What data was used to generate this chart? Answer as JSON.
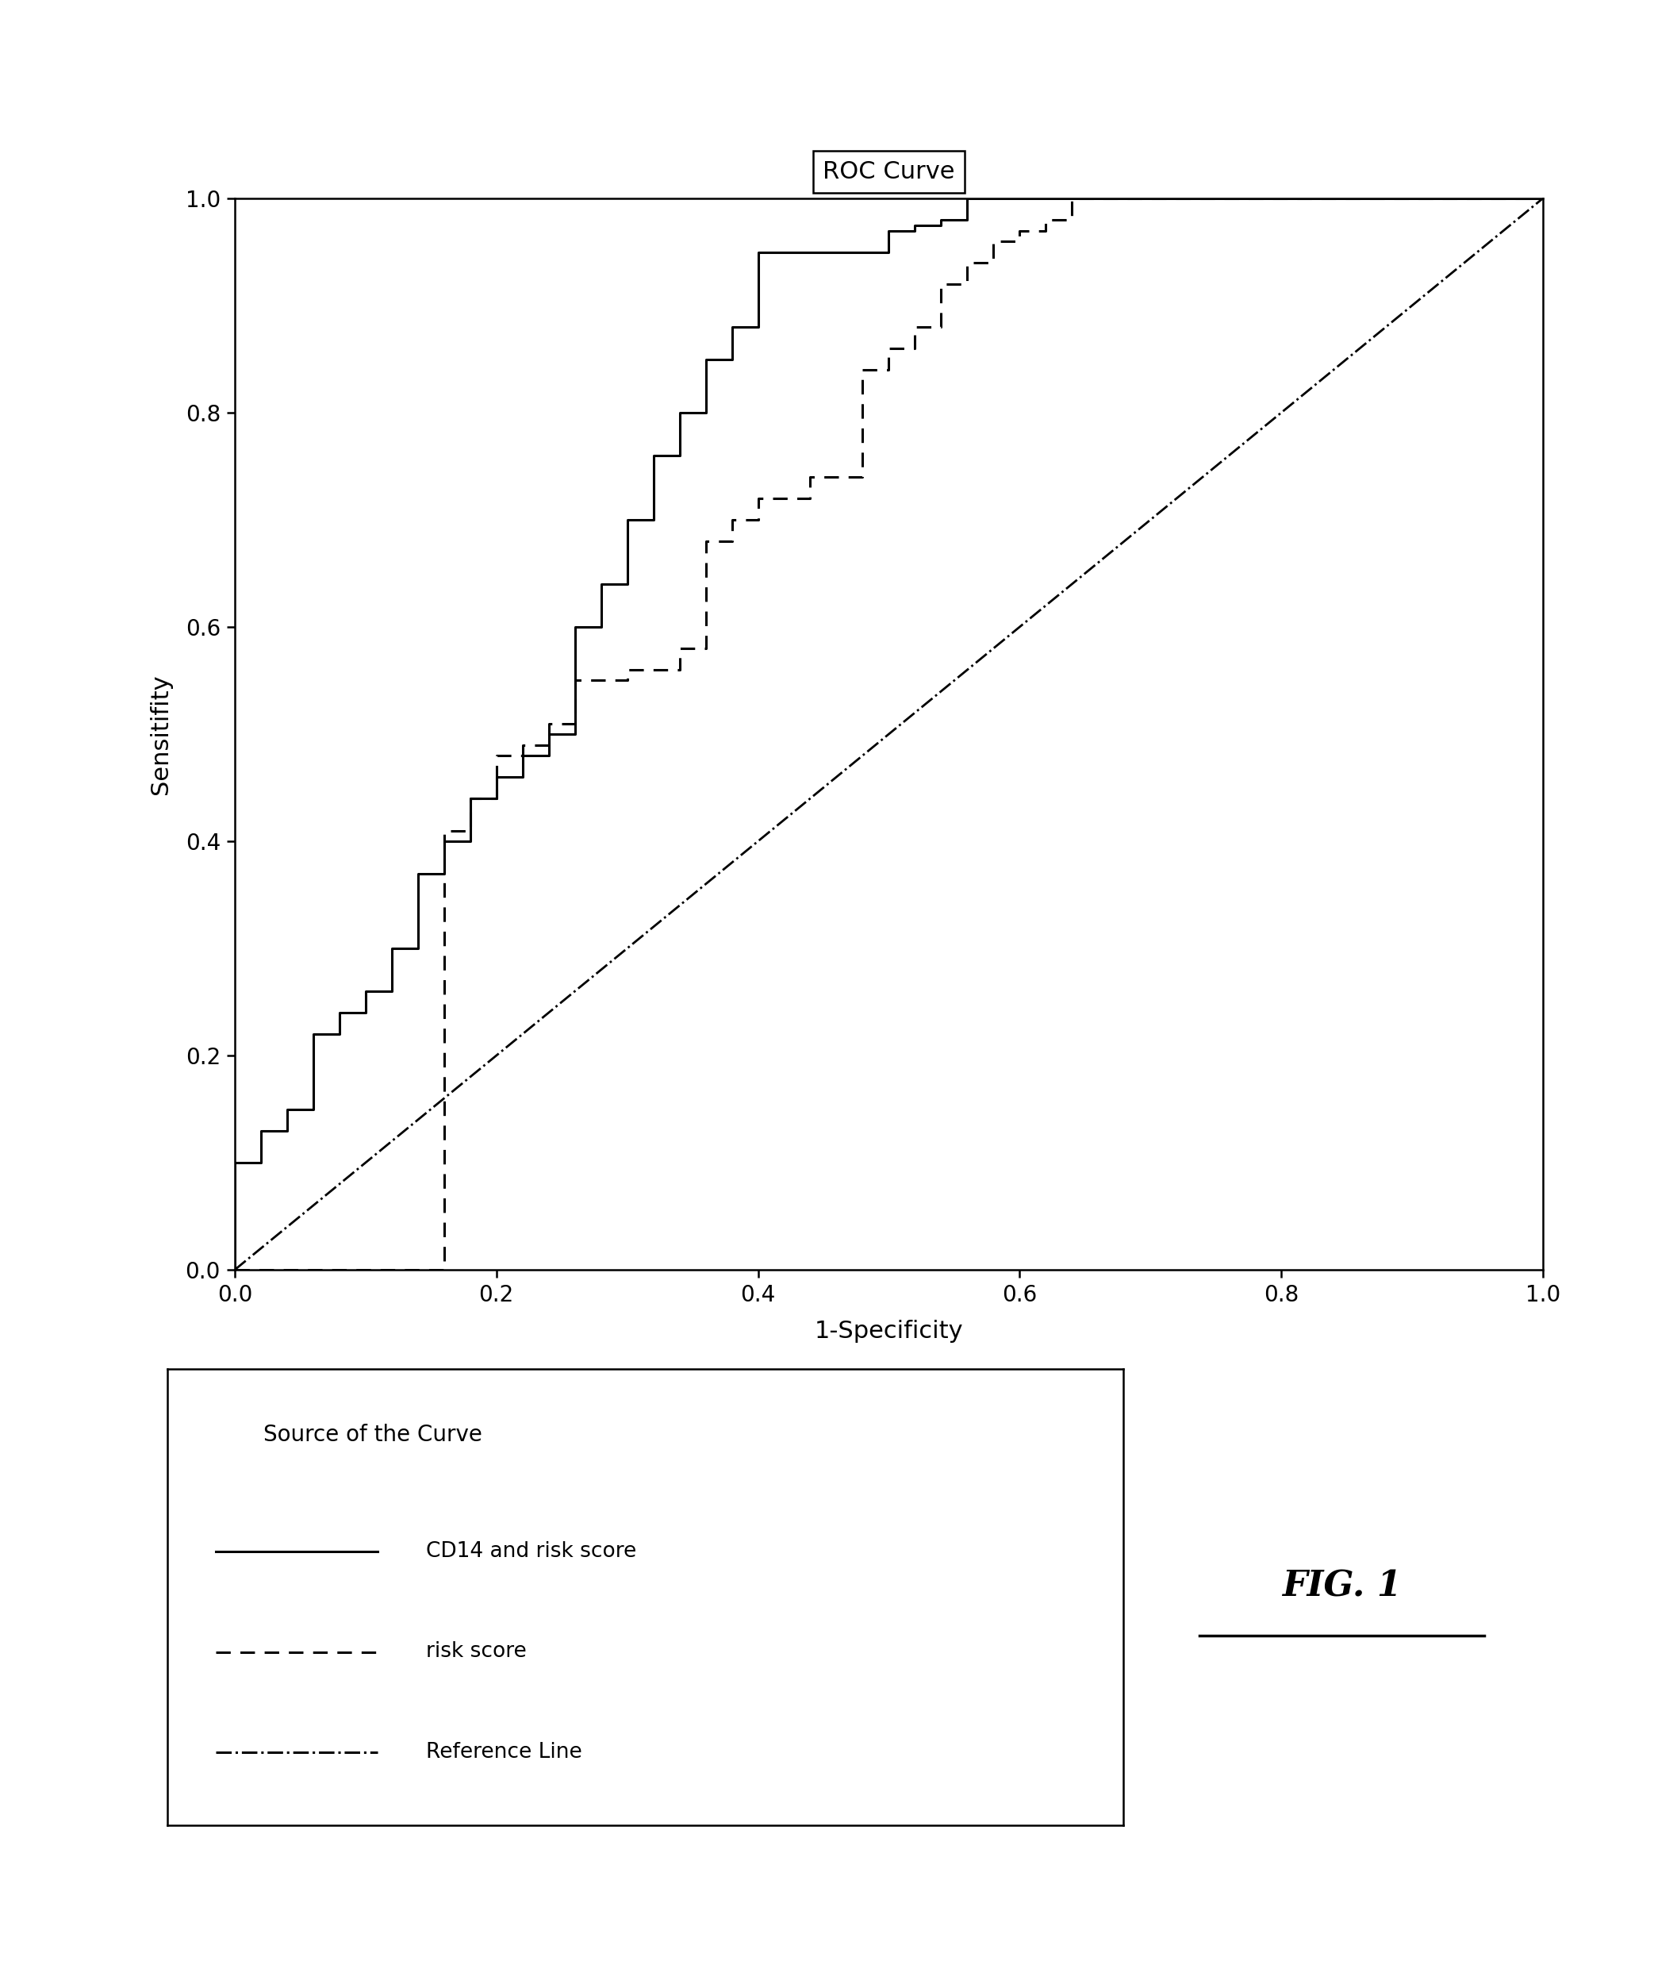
{
  "title": "ROC Curve",
  "xlabel": "1-Specificity",
  "ylabel": "Sensitifity",
  "xlim": [
    0.0,
    1.0
  ],
  "ylim": [
    0.0,
    1.0
  ],
  "xticks": [
    0.0,
    0.2,
    0.4,
    0.6,
    0.8,
    1.0
  ],
  "yticks": [
    0.0,
    0.2,
    0.4,
    0.6,
    0.8,
    1.0
  ],
  "background_color": "#ffffff",
  "line_color": "#000000",
  "title_fontsize": 22,
  "axis_label_fontsize": 22,
  "tick_fontsize": 20,
  "legend_title": "Source of the Curve",
  "legend_title_fontsize": 20,
  "legend_text_fontsize": 19,
  "legend_entries": [
    "CD14 and risk score",
    "risk score",
    "Reference Line"
  ],
  "legend_linestyles": [
    "-",
    "--",
    "-."
  ],
  "fig_label": "FIG. 1",
  "fig_label_fontsize": 32,
  "cd14_x": [
    0.0,
    0.0,
    0.02,
    0.02,
    0.04,
    0.04,
    0.06,
    0.06,
    0.08,
    0.08,
    0.1,
    0.1,
    0.12,
    0.12,
    0.14,
    0.14,
    0.16,
    0.16,
    0.18,
    0.18,
    0.2,
    0.2,
    0.22,
    0.22,
    0.24,
    0.24,
    0.26,
    0.26,
    0.28,
    0.28,
    0.3,
    0.3,
    0.32,
    0.32,
    0.34,
    0.34,
    0.36,
    0.36,
    0.38,
    0.38,
    0.4,
    0.4,
    0.5,
    0.5,
    0.52,
    0.52,
    0.54,
    0.54,
    0.56,
    0.56,
    0.58,
    0.58,
    0.6,
    0.6,
    0.8,
    0.8,
    0.82,
    0.82,
    1.0
  ],
  "cd14_y": [
    0.0,
    0.1,
    0.1,
    0.13,
    0.13,
    0.15,
    0.15,
    0.22,
    0.22,
    0.24,
    0.24,
    0.26,
    0.26,
    0.3,
    0.3,
    0.37,
    0.37,
    0.4,
    0.4,
    0.44,
    0.44,
    0.46,
    0.46,
    0.48,
    0.48,
    0.5,
    0.5,
    0.6,
    0.6,
    0.64,
    0.64,
    0.7,
    0.7,
    0.76,
    0.76,
    0.8,
    0.8,
    0.85,
    0.85,
    0.88,
    0.88,
    0.95,
    0.95,
    0.97,
    0.97,
    0.975,
    0.975,
    0.98,
    0.98,
    1.0,
    1.0,
    1.0,
    1.0,
    1.0,
    1.0,
    1.0,
    1.0,
    1.0,
    1.0
  ],
  "risk_x": [
    0.0,
    0.0,
    0.16,
    0.16,
    0.18,
    0.18,
    0.2,
    0.2,
    0.22,
    0.22,
    0.24,
    0.24,
    0.26,
    0.26,
    0.3,
    0.3,
    0.34,
    0.34,
    0.36,
    0.36,
    0.38,
    0.38,
    0.4,
    0.4,
    0.44,
    0.44,
    0.48,
    0.48,
    0.5,
    0.5,
    0.52,
    0.52,
    0.54,
    0.54,
    0.56,
    0.56,
    0.58,
    0.58,
    0.6,
    0.6,
    0.62,
    0.62,
    0.64,
    0.64,
    0.8,
    0.8,
    1.0
  ],
  "risk_y": [
    0.0,
    0.0,
    0.0,
    0.41,
    0.41,
    0.44,
    0.44,
    0.48,
    0.48,
    0.49,
    0.49,
    0.51,
    0.51,
    0.55,
    0.55,
    0.56,
    0.56,
    0.58,
    0.58,
    0.68,
    0.68,
    0.7,
    0.7,
    0.72,
    0.72,
    0.74,
    0.74,
    0.84,
    0.84,
    0.86,
    0.86,
    0.88,
    0.88,
    0.92,
    0.92,
    0.94,
    0.94,
    0.96,
    0.96,
    0.97,
    0.97,
    0.98,
    0.98,
    1.0,
    1.0,
    1.0,
    1.0
  ]
}
